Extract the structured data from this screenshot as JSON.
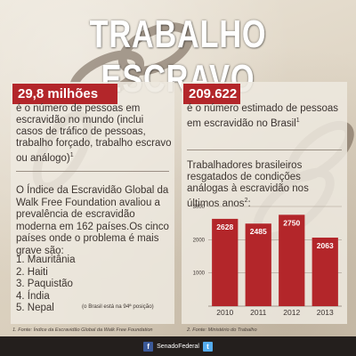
{
  "title": "TRABALHO ESCRAVO",
  "left": {
    "stat": "29,8 milhões",
    "description": "é o número de pessoas em escravidão no mundo (inclui casos de tráfico de pessoas, trabalho forçado, trabalho escravo ou análogo)",
    "description_sup": "1",
    "index_text": "O Índice da Escravidão Global da Walk Free Foundation avaliou a prevalência de escravidão moderna em 162 países.Os cinco países onde o problema é mais grave são:",
    "countries": [
      "1. Mauritânia",
      "2. Haiti",
      "3. Paquistão",
      "4. Índia",
      "5. Nepal"
    ],
    "brasil_note": "(o Brasil está na 94ª posição)"
  },
  "right": {
    "stat": "209.622",
    "description": "é o número estimado de pessoas em escravidão no Brasil",
    "description_sup": "1",
    "chart_title": "Trabalhadores brasileiros resgatados de condições análogas à escravidão nos últimos anos",
    "chart_title_sup": "2",
    "chart_title_suffix": ":"
  },
  "chart_data": {
    "type": "bar",
    "title": "Trabalhadores brasileiros resgatados de condições análogas à escravidão nos últimos anos",
    "categories": [
      "2010",
      "2011",
      "2012",
      "2013"
    ],
    "values": [
      2628,
      2485,
      2750,
      2063
    ],
    "ylim": [
      0,
      3000
    ],
    "yticks": [
      1000,
      2000,
      3000
    ],
    "grid": true,
    "xlabel": "",
    "ylabel": "",
    "bar_color": "#b3262a"
  },
  "footnotes": {
    "left": "1. Fonte: Índice da Escravidão Global da Walk Free Foundation",
    "right": "2. Fonte: Ministério do Trabalho"
  },
  "footer": {
    "brand": "SenadoFederal",
    "facebook_icon": "f",
    "twitter_icon": "t"
  },
  "colors": {
    "accent": "#b3262a",
    "footer_bg": "#241f1d"
  }
}
